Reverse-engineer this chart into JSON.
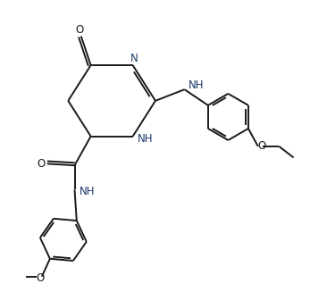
{
  "bg_color": "#ffffff",
  "line_color": "#1a1a1a",
  "text_color": "#1a3a6b",
  "bond_lw": 1.4,
  "font_size": 8.5,
  "fig_width": 3.66,
  "fig_height": 3.27,
  "dpi": 100,
  "xlim": [
    -1.0,
    8.5
  ],
  "ylim": [
    -3.5,
    5.5
  ]
}
